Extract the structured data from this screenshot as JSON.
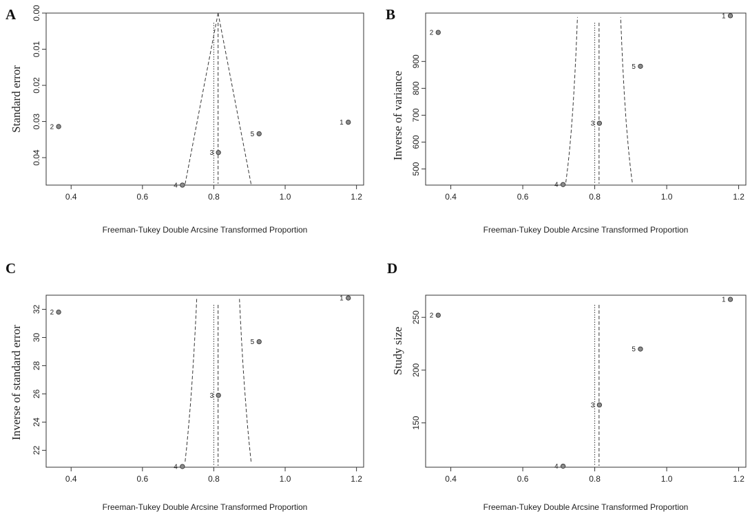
{
  "chart_data": [
    {
      "type": "scatter",
      "panel": "A",
      "xlabel": "Freeman-Tukey Double Arcsine Transformed Proportion",
      "ylabel": "Standard error",
      "xlim": [
        0.33,
        1.22
      ],
      "ylim": [
        0.0,
        0.0476
      ],
      "y_reversed": true,
      "x_ticks": [
        "0.4",
        "0.6",
        "0.8",
        "1.0",
        "1.2"
      ],
      "y_ticks": [
        "0.00",
        "0.01",
        "0.02",
        "0.03",
        "0.04"
      ],
      "points": [
        {
          "label": "1",
          "x": 1.177,
          "y": 0.0302
        },
        {
          "label": "2",
          "x": 0.365,
          "y": 0.0314
        },
        {
          "label": "3",
          "x": 0.813,
          "y": 0.0386
        },
        {
          "label": "4",
          "x": 0.712,
          "y": 0.0476
        },
        {
          "label": "5",
          "x": 0.927,
          "y": 0.0334
        }
      ],
      "ref_lines": {
        "fixed_estimate": 0.8,
        "random_estimate": 0.812
      },
      "funnel": {
        "apex": [
          0.812,
          0.0
        ],
        "left_base": [
          0.719,
          0.0476
        ],
        "right_base": [
          0.905,
          0.0476
        ]
      }
    },
    {
      "type": "scatter",
      "panel": "B",
      "xlabel": "Freeman-Tukey Double Arcsine Transformed Proportion",
      "ylabel": "Inverse of variance",
      "xlim": [
        0.33,
        1.22
      ],
      "ylim": [
        440,
        1080
      ],
      "x_ticks": [
        "0.4",
        "0.6",
        "0.8",
        "1.0",
        "1.2"
      ],
      "y_ticks": [
        "500",
        "600",
        "700",
        "800",
        "900"
      ],
      "points": [
        {
          "label": "1",
          "x": 1.177,
          "y": 1070
        },
        {
          "label": "2",
          "x": 0.365,
          "y": 1008
        },
        {
          "label": "3",
          "x": 0.813,
          "y": 670
        },
        {
          "label": "4",
          "x": 0.712,
          "y": 442
        },
        {
          "label": "5",
          "x": 0.927,
          "y": 882
        }
      ],
      "ref_lines": {
        "fixed_estimate": 0.8,
        "random_estimate": 0.812
      },
      "funnel": {
        "ymax": 1065,
        "ymin": 450
      }
    },
    {
      "type": "scatter",
      "panel": "C",
      "xlabel": "Freeman-Tukey Double Arcsine Transformed Proportion",
      "ylabel": "Inverse of standard error",
      "xlim": [
        0.33,
        1.22
      ],
      "ylim": [
        20.8,
        33.0
      ],
      "x_ticks": [
        "0.4",
        "0.6",
        "0.8",
        "1.0",
        "1.2"
      ],
      "y_ticks": [
        "22",
        "24",
        "26",
        "28",
        "30",
        "32"
      ],
      "points": [
        {
          "label": "1",
          "x": 1.177,
          "y": 32.8
        },
        {
          "label": "2",
          "x": 0.365,
          "y": 31.8
        },
        {
          "label": "3",
          "x": 0.813,
          "y": 25.9
        },
        {
          "label": "4",
          "x": 0.712,
          "y": 20.85
        },
        {
          "label": "5",
          "x": 0.927,
          "y": 29.7
        }
      ],
      "ref_lines": {
        "fixed_estimate": 0.8,
        "random_estimate": 0.812
      },
      "funnel": {
        "ymax": 32.8,
        "ymin": 21.2
      }
    },
    {
      "type": "scatter",
      "panel": "D",
      "xlabel": "Freeman-Tukey Double Arcsine Transformed Proportion",
      "ylabel": "Study size",
      "xlim": [
        0.33,
        1.22
      ],
      "ylim": [
        108,
        271
      ],
      "x_ticks": [
        "0.4",
        "0.6",
        "0.8",
        "1.0",
        "1.2"
      ],
      "y_ticks": [
        "150",
        "200",
        "250"
      ],
      "points": [
        {
          "label": "1",
          "x": 1.177,
          "y": 267
        },
        {
          "label": "2",
          "x": 0.365,
          "y": 252
        },
        {
          "label": "3",
          "x": 0.813,
          "y": 167
        },
        {
          "label": "4",
          "x": 0.712,
          "y": 109
        },
        {
          "label": "5",
          "x": 0.927,
          "y": 220
        }
      ],
      "ref_lines": {
        "fixed_estimate": 0.8,
        "random_estimate": 0.812
      }
    }
  ]
}
